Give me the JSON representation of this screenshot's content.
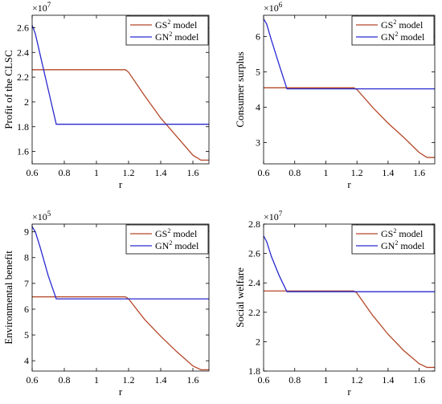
{
  "chart_data": [
    {
      "type": "line",
      "title": "",
      "xlabel": "r",
      "ylabel": "Profit of the CLSC",
      "exponent_base": "×10",
      "exponent_power": "7",
      "xlim": [
        0.6,
        1.7
      ],
      "ylim": [
        1.5,
        2.7
      ],
      "xticks": [
        0.6,
        0.8,
        1,
        1.2,
        1.4,
        1.6
      ],
      "xtick_labels": [
        "0.6",
        "0.8",
        "1",
        "1.2",
        "1.4",
        "1.6"
      ],
      "yticks": [
        1.6,
        1.8,
        2,
        2.2,
        2.4,
        2.6
      ],
      "ytick_labels": [
        "1.6",
        "1.8",
        "2",
        "2.2",
        "2.4",
        "2.6"
      ],
      "legend_position": "top-right",
      "series": [
        {
          "name_base": "GS",
          "name_sup": "2",
          "name_suffix": " model",
          "color": "#b5482a",
          "x": [
            0.6,
            0.8,
            1.0,
            1.18,
            1.2,
            1.3,
            1.4,
            1.5,
            1.6,
            1.65,
            1.7
          ],
          "y": [
            2.26,
            2.26,
            2.26,
            2.26,
            2.24,
            2.05,
            1.87,
            1.72,
            1.57,
            1.53,
            1.53
          ]
        },
        {
          "name_base": "GN",
          "name_sup": "2",
          "name_suffix": " model",
          "color": "#2a2ad0",
          "x": [
            0.6,
            0.62,
            0.65,
            0.7,
            0.75,
            0.8,
            1.0,
            1.2,
            1.4,
            1.6,
            1.7
          ],
          "y": [
            2.62,
            2.55,
            2.38,
            2.1,
            1.82,
            1.82,
            1.82,
            1.82,
            1.82,
            1.82,
            1.82
          ]
        }
      ]
    },
    {
      "type": "line",
      "title": "",
      "xlabel": "r",
      "ylabel": "Consumer surplus",
      "exponent_base": "×10",
      "exponent_power": "6",
      "xlim": [
        0.6,
        1.7
      ],
      "ylim": [
        2.4,
        6.6
      ],
      "xticks": [
        0.6,
        0.8,
        1,
        1.2,
        1.4,
        1.6
      ],
      "xtick_labels": [
        "0.6",
        "0.8",
        "1",
        "1.2",
        "1.4",
        "1.6"
      ],
      "yticks": [
        3,
        4,
        5,
        6
      ],
      "ytick_labels": [
        "3",
        "4",
        "5",
        "6"
      ],
      "legend_position": "top-right",
      "series": [
        {
          "name_base": "GS",
          "name_sup": "2",
          "name_suffix": " model",
          "color": "#b5482a",
          "x": [
            0.6,
            0.8,
            1.0,
            1.18,
            1.2,
            1.3,
            1.4,
            1.5,
            1.6,
            1.65,
            1.7
          ],
          "y": [
            4.55,
            4.55,
            4.55,
            4.55,
            4.5,
            4.0,
            3.55,
            3.15,
            2.72,
            2.58,
            2.58
          ]
        },
        {
          "name_base": "GN",
          "name_sup": "2",
          "name_suffix": " model",
          "color": "#2a2ad0",
          "x": [
            0.6,
            0.62,
            0.65,
            0.7,
            0.75,
            0.8,
            1.0,
            1.2,
            1.4,
            1.6,
            1.7
          ],
          "y": [
            6.5,
            6.35,
            5.9,
            5.2,
            4.52,
            4.52,
            4.52,
            4.52,
            4.52,
            4.52,
            4.52
          ]
        }
      ]
    },
    {
      "type": "line",
      "title": "",
      "xlabel": "r",
      "ylabel": "Environmental benefit",
      "exponent_base": "×10",
      "exponent_power": "5",
      "xlim": [
        0.6,
        1.7
      ],
      "ylim": [
        3.6,
        9.3
      ],
      "xticks": [
        0.6,
        0.8,
        1,
        1.2,
        1.4,
        1.6
      ],
      "xtick_labels": [
        "0.6",
        "0.8",
        "1",
        "1.2",
        "1.4",
        "1.6"
      ],
      "yticks": [
        4,
        5,
        6,
        7,
        8,
        9
      ],
      "ytick_labels": [
        "4",
        "5",
        "6",
        "7",
        "8",
        "9"
      ],
      "legend_position": "top-right",
      "series": [
        {
          "name_base": "GS",
          "name_sup": "2",
          "name_suffix": " model",
          "color": "#b5482a",
          "x": [
            0.6,
            0.8,
            1.0,
            1.18,
            1.2,
            1.3,
            1.4,
            1.5,
            1.6,
            1.65,
            1.7
          ],
          "y": [
            6.48,
            6.48,
            6.48,
            6.48,
            6.4,
            5.6,
            4.95,
            4.35,
            3.8,
            3.65,
            3.65
          ]
        },
        {
          "name_base": "GN",
          "name_sup": "2",
          "name_suffix": " model",
          "color": "#2a2ad0",
          "x": [
            0.6,
            0.62,
            0.65,
            0.7,
            0.75,
            0.8,
            1.0,
            1.2,
            1.4,
            1.6,
            1.7
          ],
          "y": [
            9.2,
            9.0,
            8.4,
            7.3,
            6.4,
            6.4,
            6.4,
            6.4,
            6.4,
            6.4,
            6.4
          ]
        }
      ]
    },
    {
      "type": "line",
      "title": "",
      "xlabel": "r",
      "ylabel": "Social welfare",
      "exponent_base": "×10",
      "exponent_power": "7",
      "xlim": [
        0.6,
        1.7
      ],
      "ylim": [
        1.8,
        2.8
      ],
      "xticks": [
        0.6,
        0.8,
        1,
        1.2,
        1.4,
        1.6
      ],
      "xtick_labels": [
        "0.6",
        "0.8",
        "1",
        "1.2",
        "1.4",
        "1.6"
      ],
      "yticks": [
        1.8,
        2,
        2.2,
        2.4,
        2.6,
        2.8
      ],
      "ytick_labels": [
        "1.8",
        "2",
        "2.2",
        "2.4",
        "2.6",
        "2.8"
      ],
      "legend_position": "top-right",
      "series": [
        {
          "name_base": "GS",
          "name_sup": "2",
          "name_suffix": " model",
          "color": "#b5482a",
          "x": [
            0.6,
            0.8,
            1.0,
            1.18,
            1.2,
            1.3,
            1.4,
            1.5,
            1.6,
            1.65,
            1.7
          ],
          "y": [
            2.345,
            2.345,
            2.345,
            2.345,
            2.33,
            2.18,
            2.05,
            1.94,
            1.85,
            1.825,
            1.825
          ]
        },
        {
          "name_base": "GN",
          "name_sup": "2",
          "name_suffix": " model",
          "color": "#2a2ad0",
          "x": [
            0.6,
            0.62,
            0.65,
            0.7,
            0.75,
            0.8,
            1.0,
            1.2,
            1.4,
            1.6,
            1.7
          ],
          "y": [
            2.72,
            2.68,
            2.58,
            2.45,
            2.34,
            2.34,
            2.34,
            2.34,
            2.34,
            2.34,
            2.34
          ]
        }
      ]
    }
  ]
}
